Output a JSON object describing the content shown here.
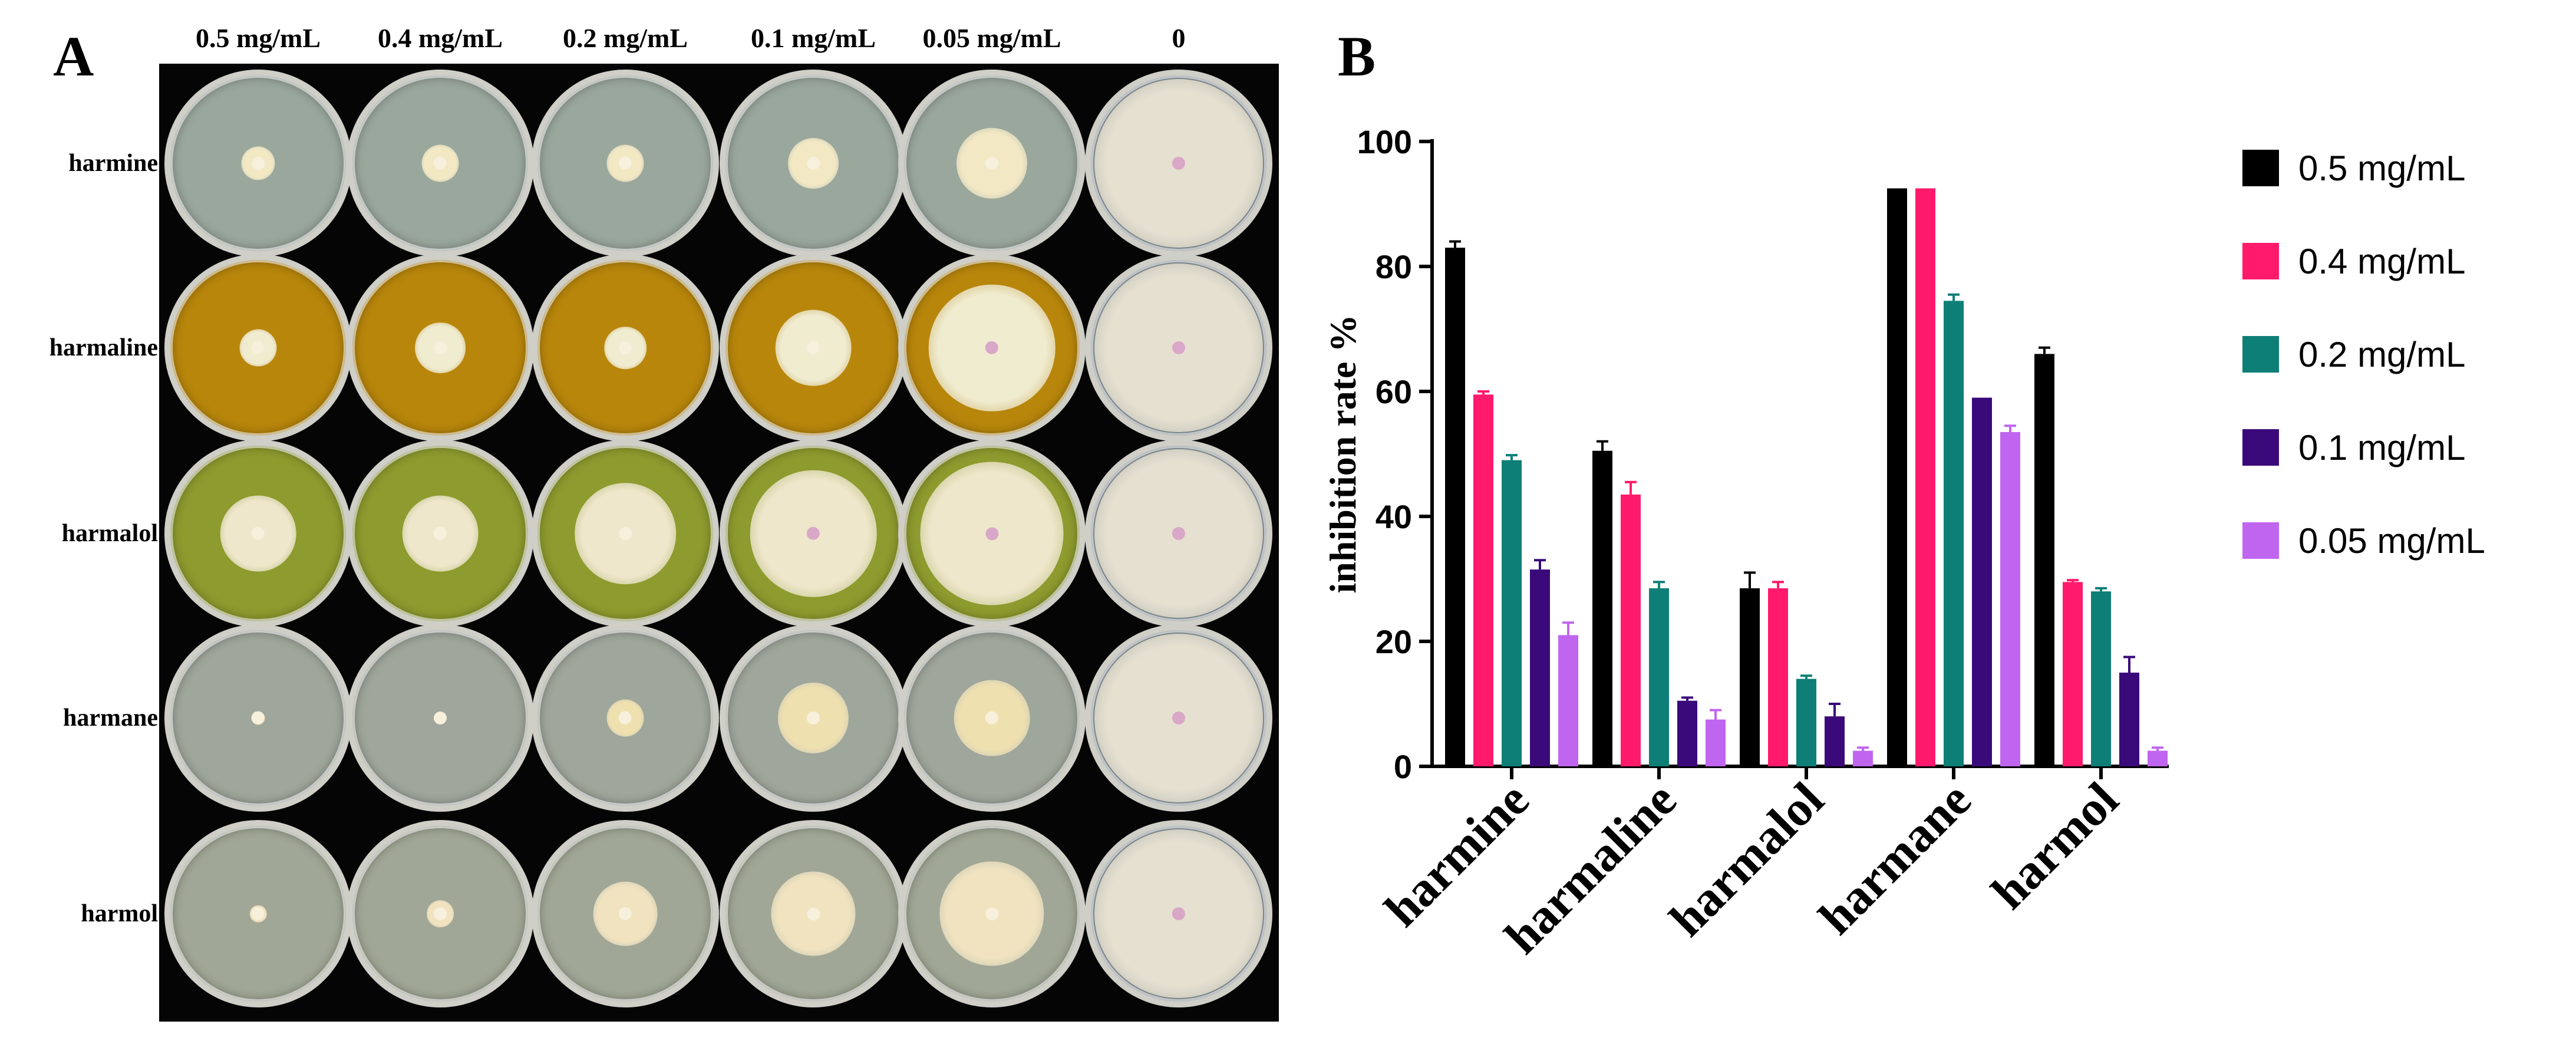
{
  "panel_a": {
    "letter": "A",
    "columns": [
      "0.5 mg/mL",
      "0.4 mg/mL",
      "0.2 mg/mL",
      "0.1 mg/mL",
      "0.05 mg/mL",
      "0"
    ],
    "rows": [
      {
        "label": "harmine",
        "medium": "#9aa79c",
        "colony": "#f2e8c4",
        "growth_level": [
          0.2,
          0.22,
          0.22,
          0.3,
          0.42,
          1.0
        ]
      },
      {
        "label": "harmaline",
        "medium": "#b8860b",
        "colony": "#f0ecd0",
        "growth_level": [
          0.22,
          0.3,
          0.25,
          0.45,
          0.75,
          1.0
        ]
      },
      {
        "label": "harmalol",
        "medium": "#8e9b2e",
        "colony": "#efe7cc",
        "growth_level": [
          0.45,
          0.45,
          0.6,
          0.75,
          0.85,
          1.0
        ]
      },
      {
        "label": "harmane",
        "medium": "#9fa69b",
        "colony": "#efe0b0",
        "growth_level": [
          0.08,
          0.06,
          0.22,
          0.42,
          0.45,
          1.0
        ]
      },
      {
        "label": "harmol",
        "medium": "#a1a796",
        "colony": "#f1e3bf",
        "growth_level": [
          0.1,
          0.16,
          0.38,
          0.5,
          0.62,
          1.0
        ]
      }
    ],
    "control_colony": "#e6e0d0"
  },
  "chart_data": {
    "type": "bar",
    "panel_letter": "B",
    "categories": [
      "harmine",
      "harmaline",
      "harmalol",
      "harmane",
      "harmol"
    ],
    "series": [
      {
        "name": "0.5 mg/mL",
        "color": "#000000",
        "values": [
          83,
          50.5,
          28.5,
          92.5,
          66
        ],
        "errors": [
          1,
          1.5,
          2.5,
          0,
          1
        ]
      },
      {
        "name": "0.4 mg/mL",
        "color": "#ff1a6b",
        "values": [
          59.5,
          43.5,
          28.5,
          92.5,
          29.5
        ],
        "errors": [
          0.5,
          2,
          1,
          0,
          0.3
        ]
      },
      {
        "name": "0.2 mg/mL",
        "color": "#0e7f76",
        "values": [
          49,
          28.5,
          14,
          74.5,
          28
        ],
        "errors": [
          0.8,
          1,
          0.5,
          1,
          0.5
        ]
      },
      {
        "name": "0.1 mg/mL",
        "color": "#3a0a7a",
        "values": [
          31.5,
          10.5,
          8,
          59,
          15
        ],
        "errors": [
          1.5,
          0.5,
          2,
          0,
          2.5
        ]
      },
      {
        "name": "0.05 mg/mL",
        "color": "#c065f0",
        "values": [
          21,
          7.5,
          2.5,
          53.5,
          2.5
        ],
        "errors": [
          2,
          1.5,
          0.5,
          1,
          0.5
        ]
      }
    ],
    "ylabel": "inhibition rate %",
    "ylim": [
      0,
      100
    ],
    "yticks": [
      "0",
      "20",
      "40",
      "60",
      "80",
      "100"
    ],
    "legend_position": "right"
  }
}
